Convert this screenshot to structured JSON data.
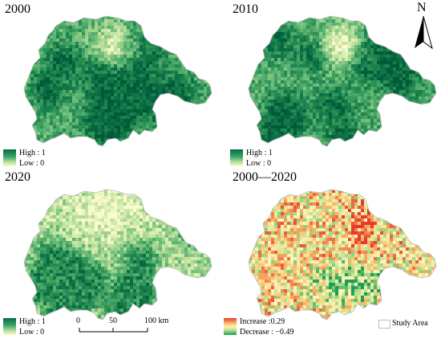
{
  "panels": [
    {
      "id": "p2000",
      "title": "2000",
      "palette": "green",
      "seed": 11,
      "high_label": "High : 1",
      "low_label": "Low : 0"
    },
    {
      "id": "p2010",
      "title": "2010",
      "palette": "green",
      "seed": 23,
      "high_label": "High : 1",
      "low_label": "Low : 0"
    },
    {
      "id": "p2020",
      "title": "2020",
      "palette": "lightgreen",
      "seed": 37,
      "high_label": "High : 1",
      "low_label": "Low : 0"
    },
    {
      "id": "pdiff",
      "title": "2000—2020",
      "palette": "diverging",
      "seed": 51,
      "high_label": "Increase :0.29",
      "low_label": "Decrease : −0.49"
    }
  ],
  "scale_bar": {
    "labels": [
      "0",
      "50",
      "100 km"
    ]
  },
  "north_arrow": {
    "letter": "N",
    "icon": "north-arrow-icon"
  },
  "study_area_label": "Study Area",
  "colors": {
    "high_green": "#006b45",
    "low_green": "#fbfbd0",
    "increase": "#e8392b",
    "decrease": "#1b9e55",
    "outline": "#bdbdbd"
  }
}
